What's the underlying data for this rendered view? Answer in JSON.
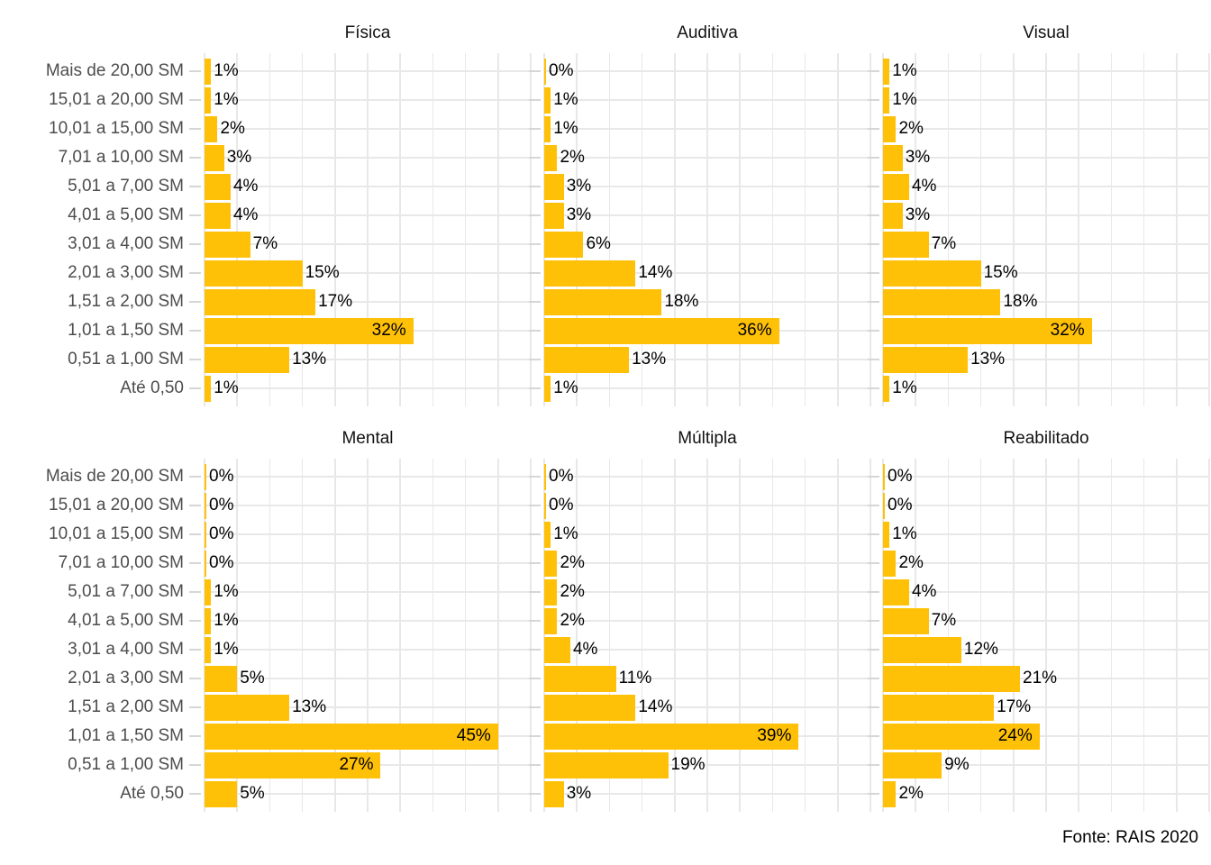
{
  "chart_data": {
    "type": "bar",
    "orientation": "horizontal",
    "facet_layout": "2 rows x 3 columns",
    "unit": "%",
    "xlim": [
      0,
      50
    ],
    "grid_step_pct": 5,
    "grid": "on",
    "legend": "none",
    "bar_color": "#FFC107",
    "grid_color": "#E8E8E8",
    "axis_text_color": "#4D4D4D",
    "categories": [
      "Mais de 20,00 SM",
      "15,01 a 20,00 SM",
      "10,01 a 15,00 SM",
      "7,01 a 10,00 SM",
      "5,01 a 7,00 SM",
      "4,01 a 5,00 SM",
      "3,01 a 4,00 SM",
      "2,01 a 3,00 SM",
      "1,51 a 2,00 SM",
      "1,01 a 1,50 SM",
      "0,51 a 1,00 SM",
      "Até 0,50"
    ],
    "series": [
      {
        "name": "Física",
        "values": [
          1,
          1,
          2,
          3,
          4,
          4,
          7,
          15,
          17,
          32,
          13,
          1
        ],
        "labels": [
          "1%",
          "1%",
          "2%",
          "3%",
          "4%",
          "4%",
          "7%",
          "15%",
          "17%",
          "32%",
          "13%",
          "1%"
        ]
      },
      {
        "name": "Auditiva",
        "values": [
          0,
          1,
          1,
          2,
          3,
          3,
          6,
          14,
          18,
          36,
          13,
          1
        ],
        "labels": [
          "0%",
          "1%",
          "1%",
          "2%",
          "3%",
          "3%",
          "6%",
          "14%",
          "18%",
          "36%",
          "13%",
          "1%"
        ]
      },
      {
        "name": "Visual",
        "values": [
          1,
          1,
          2,
          3,
          4,
          3,
          7,
          15,
          18,
          32,
          13,
          1
        ],
        "labels": [
          "1%",
          "1%",
          "2%",
          "3%",
          "4%",
          "3%",
          "7%",
          "15%",
          "18%",
          "32%",
          "13%",
          "1%"
        ]
      },
      {
        "name": "Mental",
        "values": [
          0,
          0,
          0,
          0,
          1,
          1,
          1,
          5,
          13,
          45,
          27,
          5
        ],
        "labels": [
          "0%",
          "0%",
          "0%",
          "0%",
          "1%",
          "1%",
          "1%",
          "5%",
          "13%",
          "45%",
          "27%",
          "5%"
        ]
      },
      {
        "name": "Múltipla",
        "values": [
          0,
          0,
          1,
          2,
          2,
          2,
          4,
          11,
          14,
          39,
          19,
          3
        ],
        "labels": [
          "0%",
          "0%",
          "1%",
          "2%",
          "2%",
          "2%",
          "4%",
          "11%",
          "14%",
          "39%",
          "19%",
          "3%"
        ]
      },
      {
        "name": "Reabilitado",
        "values": [
          0,
          0,
          1,
          2,
          4,
          7,
          12,
          21,
          17,
          24,
          9,
          2
        ],
        "labels": [
          "0%",
          "0%",
          "1%",
          "2%",
          "4%",
          "7%",
          "12%",
          "21%",
          "17%",
          "24%",
          "9%",
          "2%"
        ]
      }
    ],
    "caption": "Fonte: RAIS 2020"
  }
}
